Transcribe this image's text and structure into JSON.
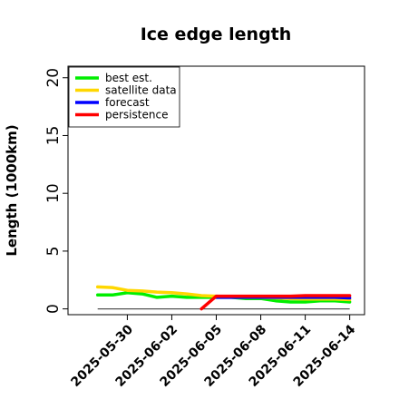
{
  "chart_data": {
    "type": "line",
    "title": "Ice edge length",
    "xlabel": "",
    "ylabel": "Length (1000km)",
    "ylim": [
      -0.5,
      21
    ],
    "yticks": [
      0,
      5,
      10,
      15,
      20
    ],
    "xlim": [
      "2025-05-26",
      "2025-06-15"
    ],
    "xticks": [
      {
        "date": "2025-05-30",
        "label": "2025-05-30",
        "color": "#000000"
      },
      {
        "date": "2025-06-02",
        "label": "2025-06-02",
        "color": "#000000"
      },
      {
        "date": "2025-06-05",
        "label": "2025-06-05",
        "color": "#228B22"
      },
      {
        "date": "2025-06-08",
        "label": "2025-06-08",
        "color": "#000000"
      },
      {
        "date": "2025-06-11",
        "label": "2025-06-11",
        "color": "#000000"
      },
      {
        "date": "2025-06-14",
        "label": "2025-06-14",
        "color": "#000000"
      }
    ],
    "legend_position": "top-left",
    "baseline": {
      "y": 0,
      "from": "2025-05-28",
      "to": "2025-06-14",
      "color": "#555555"
    },
    "series": [
      {
        "name": "best est.",
        "color": "#00ee00",
        "x": [
          "2025-05-28",
          "2025-05-29",
          "2025-05-30",
          "2025-05-31",
          "2025-06-01",
          "2025-06-02",
          "2025-06-03",
          "2025-06-04",
          "2025-06-05",
          "2025-06-06",
          "2025-06-07",
          "2025-06-08",
          "2025-06-09",
          "2025-06-10",
          "2025-06-11",
          "2025-06-12",
          "2025-06-13",
          "2025-06-14"
        ],
        "y": [
          1.2,
          1.2,
          1.4,
          1.3,
          1.0,
          1.1,
          1.0,
          1.0,
          1.0,
          1.0,
          0.9,
          0.9,
          0.7,
          0.6,
          0.6,
          0.7,
          0.7,
          0.6
        ]
      },
      {
        "name": "satellite data",
        "color": "#ffd700",
        "x": [
          "2025-05-28",
          "2025-05-29",
          "2025-05-30",
          "2025-05-31",
          "2025-06-01",
          "2025-06-02",
          "2025-06-03",
          "2025-06-04",
          "2025-06-05",
          "2025-06-06",
          "2025-06-07",
          "2025-06-08",
          "2025-06-09",
          "2025-06-10",
          "2025-06-11",
          "2025-06-12",
          "2025-06-13",
          "2025-06-14"
        ],
        "y": [
          1.9,
          1.85,
          1.6,
          1.55,
          1.45,
          1.4,
          1.3,
          1.15,
          1.1,
          1.05,
          1.0,
          1.0,
          0.95,
          0.9,
          0.85,
          0.85,
          0.85,
          0.8
        ]
      },
      {
        "name": "forecast",
        "color": "#0000ff",
        "x": [
          "2025-06-05",
          "2025-06-06",
          "2025-06-07",
          "2025-06-08",
          "2025-06-09",
          "2025-06-10",
          "2025-06-11",
          "2025-06-12",
          "2025-06-13",
          "2025-06-14"
        ],
        "y": [
          1.0,
          1.0,
          1.0,
          1.0,
          1.0,
          1.0,
          1.0,
          1.0,
          1.0,
          0.95
        ]
      },
      {
        "name": "persistence",
        "color": "#ff0000",
        "x": [
          "2025-06-04",
          "2025-06-05",
          "2025-06-06",
          "2025-06-07",
          "2025-06-08",
          "2025-06-09",
          "2025-06-10",
          "2025-06-11",
          "2025-06-12",
          "2025-06-13",
          "2025-06-14"
        ],
        "y": [
          0.0,
          1.1,
          1.1,
          1.1,
          1.1,
          1.1,
          1.1,
          1.15,
          1.15,
          1.15,
          1.15
        ]
      }
    ]
  }
}
